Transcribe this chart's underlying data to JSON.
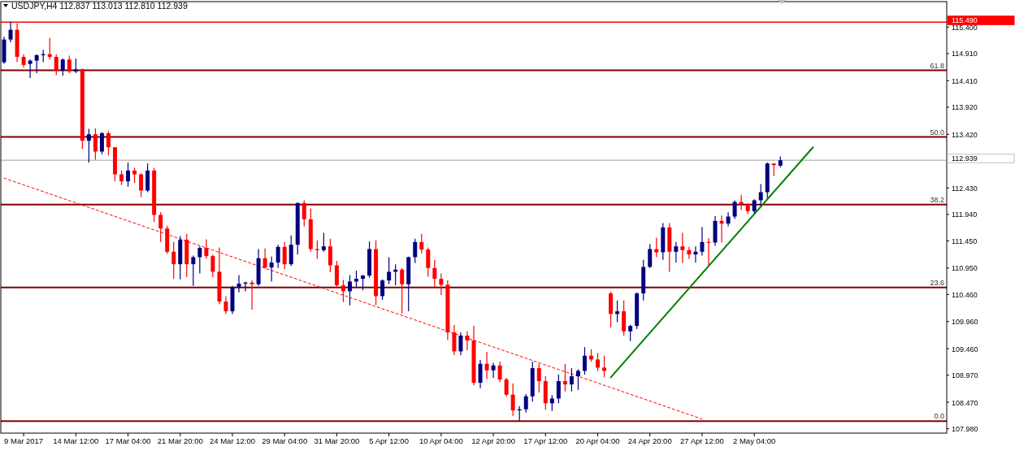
{
  "chart_data": {
    "type": "candlestick",
    "title": "USDJPY,H4  112.837 113.013 112.810 112.939",
    "categories": [
      null,
      null,
      null,
      "9 Mar 2017",
      null,
      null,
      null,
      null,
      null,
      null,
      null,
      "14 Mar 12:00",
      null,
      null,
      null,
      null,
      null,
      null,
      null,
      "17 Mar 04:00",
      null,
      null,
      null,
      null,
      null,
      null,
      null,
      "21 Mar 20:00",
      null,
      null,
      null,
      null,
      null,
      null,
      null,
      "24 Mar 12:00",
      null,
      null,
      null,
      null,
      null,
      null,
      null,
      "29 Mar 04:00",
      null,
      null,
      null,
      null,
      null,
      null,
      null,
      "31 Mar 20:00",
      null,
      null,
      null,
      null,
      null,
      null,
      null,
      "5 Apr 12:00",
      null,
      null,
      null,
      null,
      null,
      null,
      null,
      "10 Apr 04:00",
      null,
      null,
      null,
      null,
      null,
      null,
      null,
      "12 Apr 20:00",
      null,
      null,
      null,
      null,
      null,
      null,
      null,
      "17 Apr 12:00",
      null,
      null,
      null,
      null,
      null,
      null,
      null,
      "20 Apr 04:00",
      null,
      null,
      null,
      null,
      null,
      null,
      null,
      "24 Apr 20:00",
      null,
      null,
      null,
      null,
      null,
      null,
      null,
      "27 Apr 12:00",
      null,
      null,
      null,
      null,
      null,
      null,
      null,
      "2 May 04:00",
      null,
      null,
      null,
      null,
      null,
      null,
      null,
      null,
      null,
      null,
      null,
      null,
      null,
      null,
      null,
      null,
      null,
      null,
      null,
      null,
      null,
      null,
      null,
      null,
      null,
      null,
      null,
      null,
      null
    ],
    "ohlc": [
      [
        114.75,
        115.22,
        114.72,
        115.17
      ],
      [
        115.17,
        115.5,
        115.12,
        115.35
      ],
      [
        115.35,
        115.47,
        114.75,
        114.85
      ],
      [
        114.85,
        114.9,
        114.65,
        114.7
      ],
      [
        114.72,
        114.8,
        114.46,
        114.78
      ],
      [
        114.78,
        114.9,
        114.55,
        114.88
      ],
      [
        114.88,
        114.98,
        114.75,
        114.9
      ],
      [
        114.9,
        115.2,
        114.8,
        114.85
      ],
      [
        114.85,
        114.9,
        114.51,
        114.6
      ],
      [
        114.6,
        114.82,
        114.5,
        114.8
      ],
      [
        114.8,
        114.87,
        114.55,
        114.58
      ],
      [
        114.58,
        114.82,
        114.55,
        114.62
      ],
      [
        114.62,
        114.63,
        113.15,
        113.3
      ],
      [
        113.3,
        113.52,
        112.9,
        113.42
      ],
      [
        113.42,
        113.53,
        112.95,
        113.1
      ],
      [
        113.1,
        113.46,
        113.05,
        113.44
      ],
      [
        113.44,
        113.48,
        113.03,
        113.18
      ],
      [
        113.18,
        113.18,
        112.55,
        112.68
      ],
      [
        112.68,
        112.75,
        112.48,
        112.55
      ],
      [
        112.55,
        112.9,
        112.45,
        112.75
      ],
      [
        112.75,
        112.8,
        112.52,
        112.68
      ],
      [
        112.68,
        112.7,
        112.26,
        112.38
      ],
      [
        112.38,
        112.88,
        112.35,
        112.75
      ],
      [
        112.75,
        112.8,
        111.8,
        111.93
      ],
      [
        111.93,
        111.98,
        111.43,
        111.68
      ],
      [
        111.68,
        111.73,
        111.21,
        111.25
      ],
      [
        111.25,
        111.43,
        110.75,
        111.02
      ],
      [
        111.02,
        111.54,
        110.74,
        111.47
      ],
      [
        111.47,
        111.58,
        110.78,
        111.02
      ],
      [
        111.02,
        111.18,
        110.62,
        111.15
      ],
      [
        111.15,
        111.35,
        110.85,
        111.32
      ],
      [
        111.32,
        111.48,
        111.12,
        111.17
      ],
      [
        111.17,
        111.2,
        110.78,
        110.88
      ],
      [
        110.88,
        111.33,
        110.28,
        110.33
      ],
      [
        110.33,
        110.43,
        110.1,
        110.15
      ],
      [
        110.15,
        110.62,
        110.1,
        110.6
      ],
      [
        110.6,
        110.82,
        110.5,
        110.66
      ],
      [
        110.66,
        110.7,
        110.52,
        110.68
      ],
      [
        110.68,
        110.72,
        110.18,
        110.65
      ],
      [
        110.65,
        111.3,
        110.62,
        111.13
      ],
      [
        111.13,
        111.31,
        110.94,
        110.96
      ],
      [
        110.96,
        111.16,
        110.7,
        111.05
      ],
      [
        111.05,
        111.38,
        110.95,
        111.34
      ],
      [
        111.34,
        111.43,
        110.93,
        111.02
      ],
      [
        111.02,
        111.55,
        110.99,
        111.38
      ],
      [
        111.38,
        112.16,
        111.2,
        112.15
      ],
      [
        112.15,
        112.2,
        111.72,
        111.85
      ],
      [
        111.85,
        112.05,
        111.25,
        111.3
      ],
      [
        111.3,
        111.46,
        111.12,
        111.28
      ],
      [
        111.28,
        111.6,
        111.25,
        111.35
      ],
      [
        111.35,
        111.49,
        110.87,
        111.0
      ],
      [
        111.0,
        111.08,
        110.58,
        110.63
      ],
      [
        110.63,
        110.73,
        110.32,
        110.52
      ],
      [
        110.52,
        110.82,
        110.26,
        110.7
      ],
      [
        110.7,
        110.9,
        110.6,
        110.75
      ],
      [
        110.75,
        110.82,
        110.54,
        110.81
      ],
      [
        110.81,
        111.44,
        110.77,
        111.3
      ],
      [
        111.3,
        111.46,
        110.27,
        110.43
      ],
      [
        110.43,
        110.74,
        110.36,
        110.72
      ],
      [
        110.72,
        111.15,
        110.65,
        110.88
      ],
      [
        110.88,
        111.02,
        110.63,
        110.92
      ],
      [
        110.92,
        110.95,
        110.11,
        110.65
      ],
      [
        110.65,
        111.16,
        110.15,
        111.15
      ],
      [
        111.15,
        111.49,
        111.04,
        111.43
      ],
      [
        111.43,
        111.58,
        111.22,
        111.29
      ],
      [
        111.29,
        111.33,
        110.79,
        110.95
      ],
      [
        110.95,
        111.1,
        110.6,
        110.75
      ],
      [
        110.75,
        110.85,
        110.45,
        110.64
      ],
      [
        110.64,
        110.72,
        109.62,
        109.76
      ],
      [
        109.76,
        109.9,
        109.34,
        109.41
      ],
      [
        109.41,
        109.76,
        109.34,
        109.7
      ],
      [
        109.7,
        109.78,
        109.43,
        109.61
      ],
      [
        109.61,
        109.88,
        108.78,
        108.83
      ],
      [
        108.83,
        109.25,
        108.73,
        109.18
      ],
      [
        109.18,
        109.4,
        108.9,
        109.06
      ],
      [
        109.06,
        109.2,
        108.92,
        109.15
      ],
      [
        109.15,
        109.22,
        108.84,
        108.89
      ],
      [
        108.89,
        108.92,
        108.57,
        108.61
      ],
      [
        108.61,
        108.82,
        108.22,
        108.32
      ],
      [
        108.32,
        108.4,
        108.13,
        108.34
      ],
      [
        108.34,
        108.62,
        108.28,
        108.58
      ],
      [
        108.58,
        109.22,
        108.48,
        109.1
      ],
      [
        109.1,
        109.18,
        108.65,
        108.86
      ],
      [
        108.86,
        108.95,
        108.33,
        108.45
      ],
      [
        108.45,
        108.6,
        108.31,
        108.54
      ],
      [
        108.54,
        108.98,
        108.45,
        108.86
      ],
      [
        108.86,
        109.18,
        108.67,
        108.8
      ],
      [
        108.8,
        109.1,
        108.67,
        108.95
      ],
      [
        108.95,
        109.08,
        108.7,
        109.05
      ],
      [
        109.05,
        109.49,
        108.98,
        109.33
      ],
      [
        109.33,
        109.45,
        109.22,
        109.26
      ],
      [
        109.26,
        109.38,
        109.05,
        109.11
      ],
      [
        109.11,
        109.33,
        108.93,
        109.05
      ],
      [
        110.48,
        110.51,
        109.85,
        110.1
      ],
      [
        110.1,
        110.35,
        109.95,
        110.15
      ],
      [
        110.15,
        110.35,
        109.7,
        109.78
      ],
      [
        109.78,
        109.9,
        109.6,
        109.88
      ],
      [
        109.88,
        110.5,
        109.82,
        110.48
      ],
      [
        110.48,
        111.1,
        110.35,
        110.97
      ],
      [
        110.97,
        111.39,
        110.95,
        111.3
      ],
      [
        111.3,
        111.51,
        111.15,
        111.24
      ],
      [
        111.24,
        111.78,
        111.1,
        111.7
      ],
      [
        111.7,
        111.78,
        110.88,
        111.25
      ],
      [
        111.25,
        111.43,
        111.05,
        111.35
      ],
      [
        111.35,
        111.6,
        111.04,
        111.28
      ],
      [
        111.28,
        111.34,
        111.12,
        111.2
      ],
      [
        111.2,
        111.35,
        111.05,
        111.25
      ],
      [
        111.25,
        111.71,
        111.18,
        111.43
      ],
      [
        111.43,
        111.5,
        111.0,
        111.42
      ],
      [
        111.42,
        111.91,
        111.36,
        111.82
      ],
      [
        111.82,
        111.92,
        111.42,
        111.77
      ],
      [
        111.77,
        111.98,
        111.72,
        111.9
      ],
      [
        111.9,
        112.2,
        111.86,
        112.17
      ],
      [
        112.17,
        112.3,
        112.02,
        112.13
      ],
      [
        112.13,
        112.15,
        111.95,
        112.0
      ],
      [
        112.0,
        112.22,
        111.96,
        112.2
      ],
      [
        112.2,
        112.5,
        112.1,
        112.35
      ],
      [
        112.35,
        112.9,
        112.24,
        112.88
      ],
      [
        112.88,
        112.88,
        112.65,
        112.85
      ],
      [
        112.84,
        113.01,
        112.81,
        112.94
      ],
      null,
      null,
      null,
      null,
      null,
      null,
      null,
      null,
      null,
      null,
      null,
      null,
      null,
      null,
      null,
      null,
      null,
      null,
      null,
      null,
      null,
      null,
      null,
      null,
      null
    ],
    "colors": [
      "#000080",
      "#000080",
      "#ff0000",
      "#ff0000",
      "#000080",
      "#000080",
      "#000080",
      "#ff0000",
      "#ff0000",
      "#000080",
      "#ff0000",
      "#000080",
      "#ff0000",
      "#000080",
      "#ff0000",
      "#000080",
      "#ff0000",
      "#ff0000",
      "#ff0000",
      "#000080",
      "#ff0000",
      "#ff0000",
      "#000080",
      "#ff0000",
      "#ff0000",
      "#ff0000",
      "#ff0000",
      "#000080",
      "#ff0000",
      "#000080",
      "#000080",
      "#ff0000",
      "#ff0000",
      "#ff0000",
      "#ff0000",
      "#000080",
      "#000080",
      "#000080",
      "#ff0000",
      "#000080",
      "#ff0000",
      "#000080",
      "#000080",
      "#ff0000",
      "#000080",
      "#000080",
      "#ff0000",
      "#ff0000",
      "#ff0000",
      "#000080",
      "#ff0000",
      "#ff0000",
      "#ff0000",
      "#000080",
      "#000080",
      "#000080",
      "#000080",
      "#ff0000",
      "#000080",
      "#000080",
      "#000080",
      "#ff0000",
      "#000080",
      "#000080",
      "#ff0000",
      "#ff0000",
      "#ff0000",
      "#ff0000",
      "#ff0000",
      "#ff0000",
      "#000080",
      "#ff0000",
      "#ff0000",
      "#000080",
      "#ff0000",
      "#000080",
      "#ff0000",
      "#ff0000",
      "#ff0000",
      "#000080",
      "#000080",
      "#000080",
      "#ff0000",
      "#ff0000",
      "#000080",
      "#000080",
      "#ff0000",
      "#000080",
      "#000080",
      "#000080",
      "#ff0000",
      "#ff0000",
      "#ff0000",
      "#ff0000",
      "#000080",
      "#ff0000",
      "#000080",
      "#000080",
      "#000080",
      "#000080",
      "#ff0000",
      "#000080",
      "#ff0000",
      "#000080",
      "#ff0000",
      "#ff0000",
      "#000080",
      "#000080",
      "#ff0000",
      "#000080",
      "#ff0000",
      "#000080",
      "#000080",
      "#ff0000",
      "#ff0000",
      "#000080",
      "#000080",
      "#000080",
      "#ff0000",
      "#000080",
      null,
      null,
      null,
      null,
      null,
      null,
      null,
      null,
      null,
      null,
      null,
      null,
      null,
      null,
      null,
      null,
      null,
      null,
      null,
      null,
      null,
      null,
      null,
      null,
      null
    ],
    "series": [
      {
        "type": "line",
        "color": "#ff0000",
        "line_style": "dashed",
        "values": [
          112.61,
          null,
          null,
          null,
          null,
          null,
          null,
          null,
          null,
          null,
          null,
          null,
          null,
          null,
          null,
          null,
          null,
          null,
          null,
          null,
          null,
          null,
          null,
          null,
          null,
          null,
          null,
          null,
          null,
          null,
          null,
          null,
          null,
          null,
          null,
          null,
          null,
          null,
          null,
          null,
          null,
          null,
          null,
          null,
          null,
          null,
          null,
          null,
          null,
          null,
          null,
          null,
          null,
          null,
          null,
          null,
          null,
          null,
          null,
          null,
          null,
          null,
          null,
          null,
          null,
          null,
          null,
          null,
          null,
          null,
          null,
          null,
          null,
          null,
          null,
          null,
          null,
          null,
          null,
          null,
          null,
          null,
          null,
          null,
          null,
          null,
          null,
          null,
          null,
          null,
          null,
          null,
          null,
          null,
          null,
          null,
          null,
          null,
          null,
          null,
          null,
          null,
          null,
          null,
          null,
          null,
          null,
          108.16,
          null,
          null,
          null,
          null,
          null,
          null,
          null,
          null,
          null,
          null,
          null,
          null,
          null,
          null,
          null,
          null,
          null,
          null,
          null,
          null,
          null,
          null,
          null,
          null,
          null,
          null,
          null,
          null,
          null,
          null,
          null,
          null,
          null,
          null,
          null,
          null,
          null
        ]
      },
      {
        "type": "line",
        "color": "#008000",
        "line_style": "solid",
        "values": [
          null,
          null,
          null,
          null,
          null,
          null,
          null,
          null,
          null,
          null,
          null,
          null,
          null,
          null,
          null,
          null,
          null,
          null,
          null,
          null,
          null,
          null,
          null,
          null,
          null,
          null,
          null,
          null,
          null,
          null,
          null,
          null,
          null,
          null,
          null,
          null,
          null,
          null,
          null,
          null,
          null,
          null,
          null,
          null,
          null,
          null,
          null,
          null,
          null,
          null,
          null,
          null,
          null,
          null,
          null,
          null,
          null,
          null,
          null,
          null,
          null,
          null,
          null,
          null,
          null,
          null,
          null,
          null,
          null,
          null,
          null,
          null,
          null,
          null,
          null,
          null,
          null,
          null,
          null,
          null,
          null,
          null,
          null,
          null,
          null,
          null,
          null,
          null,
          null,
          null,
          null,
          null,
          null,
          108.93,
          null,
          null,
          null,
          null,
          null,
          null,
          null,
          null,
          null,
          null,
          null,
          null,
          null,
          null,
          null,
          null,
          null,
          null,
          null,
          null,
          null,
          null,
          null,
          null,
          null,
          null,
          null,
          null,
          null,
          null,
          113.18,
          null,
          null,
          null,
          null,
          null,
          null,
          null,
          null,
          null,
          null,
          null,
          null,
          null,
          null,
          null,
          null,
          null,
          null,
          null,
          null
        ]
      }
    ],
    "ylim": [
      107.9,
      115.87
    ],
    "yticks": [
      {
        "value": 115.4,
        "label": "115.400"
      },
      {
        "value": 114.91,
        "label": "114.910"
      },
      {
        "value": 114.41,
        "label": "114.410"
      },
      {
        "value": 113.92,
        "label": "113.920"
      },
      {
        "value": 113.42,
        "label": "113.420"
      },
      {
        "value": 112.43,
        "label": "112.430"
      },
      {
        "value": 111.94,
        "label": "111.940"
      },
      {
        "value": 111.45,
        "label": "111.450"
      },
      {
        "value": 110.95,
        "label": "110.950"
      },
      {
        "value": 110.46,
        "label": "110.460"
      },
      {
        "value": 109.96,
        "label": "109.960"
      },
      {
        "value": 109.46,
        "label": "109.460"
      },
      {
        "value": 108.97,
        "label": "108.970"
      },
      {
        "value": 108.47,
        "label": "108.470"
      },
      {
        "value": 107.98,
        "label": "107.980"
      }
    ],
    "ref_lines": [
      {
        "axis": "y",
        "value": 115.49,
        "label": "115.490",
        "color": "#ff0000"
      },
      {
        "axis": "y",
        "value": 114.6,
        "color": "#800000"
      },
      {
        "axis": "y",
        "value": 113.37,
        "color": "#800000"
      },
      {
        "axis": "y",
        "value": 112.939,
        "label": "112.939",
        "color": "#c0c0c0"
      },
      {
        "axis": "y",
        "value": 112.12,
        "color": "#800000"
      },
      {
        "axis": "y",
        "value": 110.59,
        "color": "#800000"
      },
      {
        "axis": "y",
        "value": 108.12,
        "color": "#800000"
      }
    ],
    "annotations": [
      {
        "text": "61.8",
        "y": 114.6
      },
      {
        "text": "50.0",
        "y": 113.37
      },
      {
        "text": "38.2",
        "y": 112.12
      },
      {
        "text": "23.6",
        "y": 110.59
      },
      {
        "text": "0.0",
        "y": 108.12
      }
    ]
  }
}
